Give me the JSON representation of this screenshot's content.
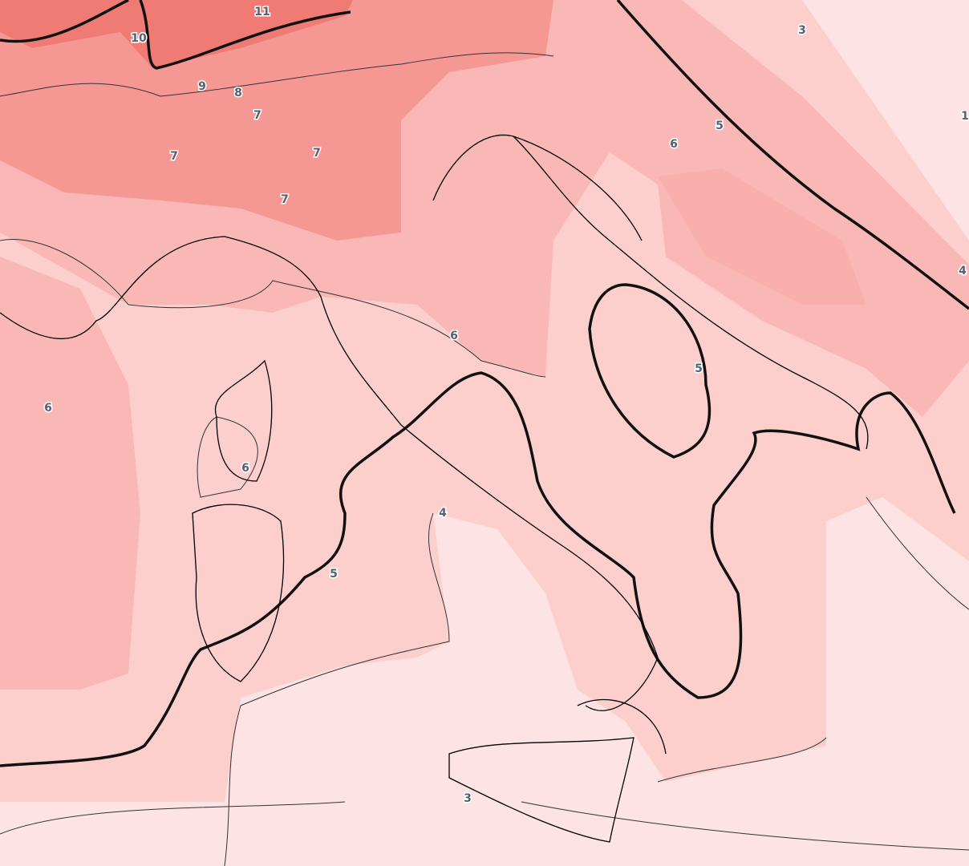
{
  "contour_labels": [
    11,
    10,
    9,
    8,
    7,
    7,
    7,
    7,
    3,
    5,
    6,
    1,
    4,
    6,
    5,
    6,
    6,
    4,
    5,
    3
  ]
}
